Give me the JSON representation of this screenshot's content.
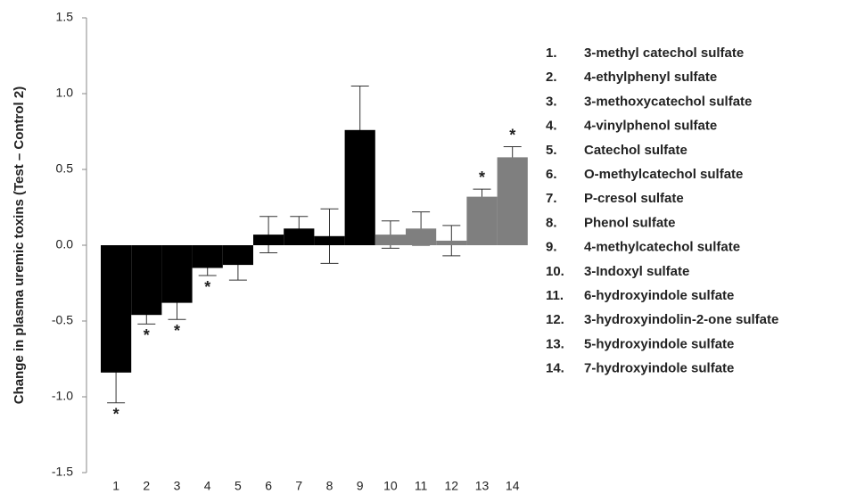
{
  "chart_data": {
    "type": "bar",
    "y_label": "Change in plasma uremic toxins (Test – Control 2)",
    "categories": [
      "1",
      "2",
      "3",
      "4",
      "5",
      "6",
      "7",
      "8",
      "9",
      "10",
      "11",
      "12",
      "13",
      "14"
    ],
    "values": [
      -0.84,
      -0.46,
      -0.38,
      -0.15,
      -0.13,
      0.07,
      0.11,
      0.06,
      0.76,
      0.07,
      0.11,
      0.03,
      0.32,
      0.58
    ],
    "errors": [
      0.2,
      0.06,
      0.11,
      0.05,
      0.1,
      0.12,
      0.08,
      0.18,
      0.29,
      0.09,
      0.11,
      0.1,
      0.05,
      0.07
    ],
    "colors": [
      "#000000",
      "#000000",
      "#000000",
      "#000000",
      "#000000",
      "#000000",
      "#000000",
      "#000000",
      "#000000",
      "#7f7f7f",
      "#7f7f7f",
      "#7f7f7f",
      "#7f7f7f",
      "#7f7f7f"
    ],
    "significance": [
      "*",
      "*",
      "*",
      "*",
      null,
      null,
      null,
      null,
      null,
      null,
      null,
      null,
      "*",
      "*"
    ],
    "ylim": [
      -1.5,
      1.5
    ],
    "yticks": [
      -1.5,
      {
        "value": -1.0,
        "label": "-1.0"
      },
      -0.5,
      {
        "value": 0,
        "label": "0.0"
      },
      0.5,
      {
        "value": 1.0,
        "label": "1.0"
      },
      1.5
    ],
    "legend_numbers": [
      "1.",
      "2.",
      "3.",
      "4.",
      "5.",
      "6.",
      "7.",
      "8.",
      "9.",
      "10.",
      "11.",
      "12.",
      "13.",
      "14."
    ],
    "legend_items": [
      "3-methyl catechol sulfate",
      "4-ethylphenyl sulfate",
      "3-methoxycatechol sulfate",
      "4-vinylphenol sulfate",
      "Catechol sulfate",
      "O-methylcatechol sulfate",
      "P-cresol sulfate",
      "Phenol sulfate",
      "4-methylcatechol sulfate",
      "3-Indoxyl sulfate",
      "6-hydroxyindole sulfate",
      "3-hydroxyindolin-2-one sulfate",
      "5-hydroxyindole sulfate",
      "7-hydroxyindole sulfate"
    ]
  }
}
